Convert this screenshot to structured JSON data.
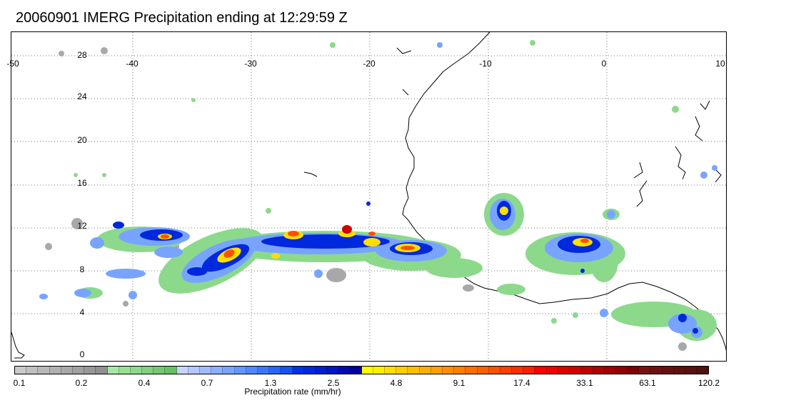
{
  "title": "20060901 IMERG Precipitation ending at 12:29:59 Z",
  "map": {
    "lon_labels": [
      "-50",
      "-40",
      "-30",
      "-20",
      "-10",
      "0",
      "10"
    ],
    "lat_labels": [
      "28",
      "24",
      "20",
      "16",
      "12",
      "8",
      "4",
      "0"
    ]
  },
  "colorbar": {
    "label": "Precipitation rate (mm/hr)",
    "tick_labels": [
      "0.1",
      "0.2",
      "0.4",
      "0.7",
      "1.3",
      "2.5",
      "4.8",
      "9.1",
      "17.4",
      "33.1",
      "63.1",
      "120.2"
    ],
    "colors": [
      "#c8c8c8",
      "#c0c0c0",
      "#b8b8b8",
      "#b0b0b0",
      "#a8a8a8",
      "#a0a0a0",
      "#989898",
      "#909090",
      "#a6e6a6",
      "#98e098",
      "#8cd98c",
      "#80d080",
      "#74c874",
      "#66c066",
      "#c8d4ff",
      "#b4c8ff",
      "#a0bcff",
      "#8cb0ff",
      "#78a4ff",
      "#6496ff",
      "#5088ff",
      "#3c78ff",
      "#2866ff",
      "#1454f5",
      "#0032e6",
      "#0028dc",
      "#001ed2",
      "#0014c8",
      "#000ab4",
      "#0000a0",
      "#ffff00",
      "#ffef00",
      "#ffdf00",
      "#ffcf00",
      "#ffbf00",
      "#ffaf00",
      "#ff9f00",
      "#ff8f00",
      "#ff7f00",
      "#ff6f00",
      "#ff5f00",
      "#ff4f00",
      "#ff3f00",
      "#ff2f00",
      "#ff1f00",
      "#ff0000",
      "#f00000",
      "#e00000",
      "#d00000",
      "#c00000",
      "#b00000",
      "#a00000",
      "#900000",
      "#800000",
      "#781010",
      "#701010",
      "#681010",
      "#601010",
      "#581010",
      "#501010"
    ]
  }
}
